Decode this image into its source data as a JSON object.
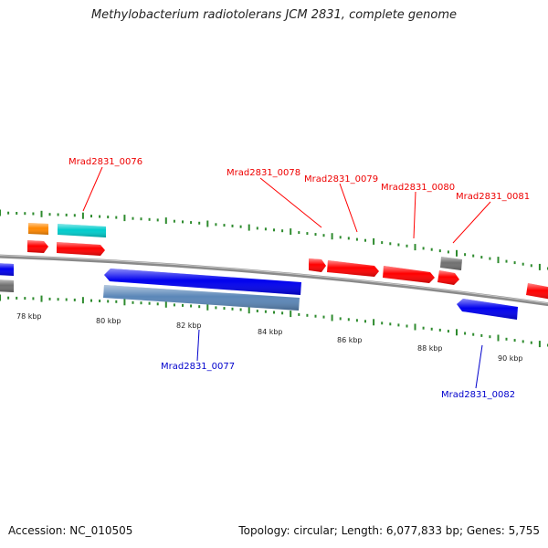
{
  "title": "Methylobacterium radiotolerans JCM 2831, complete genome",
  "footer": {
    "accession": "Accession: NC_010505",
    "summary": "Topology: circular; Length: 6,077,833 bp; Genes: 5,755"
  },
  "colors": {
    "backbone": "#8a8a8a",
    "tick": "#2e8b2e",
    "forward_gene": "#ff0000",
    "reverse_gene": "#0000ee",
    "rna": "#00cccc",
    "trna": "#ff8800",
    "pseudo": "#707070",
    "reverse_steel": "#5b87b8"
  },
  "scale": {
    "unit": "kbp",
    "labels": [
      {
        "text": "78 kbp",
        "kbp": 78
      },
      {
        "text": "80 kbp",
        "kbp": 80
      },
      {
        "text": "82 kbp",
        "kbp": 82
      },
      {
        "text": "84 kbp",
        "kbp": 84
      },
      {
        "text": "86 kbp",
        "kbp": 86
      },
      {
        "text": "88 kbp",
        "kbp": 88
      },
      {
        "text": "90 kbp",
        "kbp": 90
      }
    ]
  },
  "gene_labels": [
    {
      "name": "Mrad2831_0076",
      "strand": "forward"
    },
    {
      "name": "Mrad2831_0077",
      "strand": "reverse"
    },
    {
      "name": "Mrad2831_0078",
      "strand": "forward"
    },
    {
      "name": "Mrad2831_0079",
      "strand": "forward"
    },
    {
      "name": "Mrad2831_0080",
      "strand": "forward"
    },
    {
      "name": "Mrad2831_0081",
      "strand": "forward"
    },
    {
      "name": "Mrad2831_0082",
      "strand": "reverse"
    }
  ]
}
